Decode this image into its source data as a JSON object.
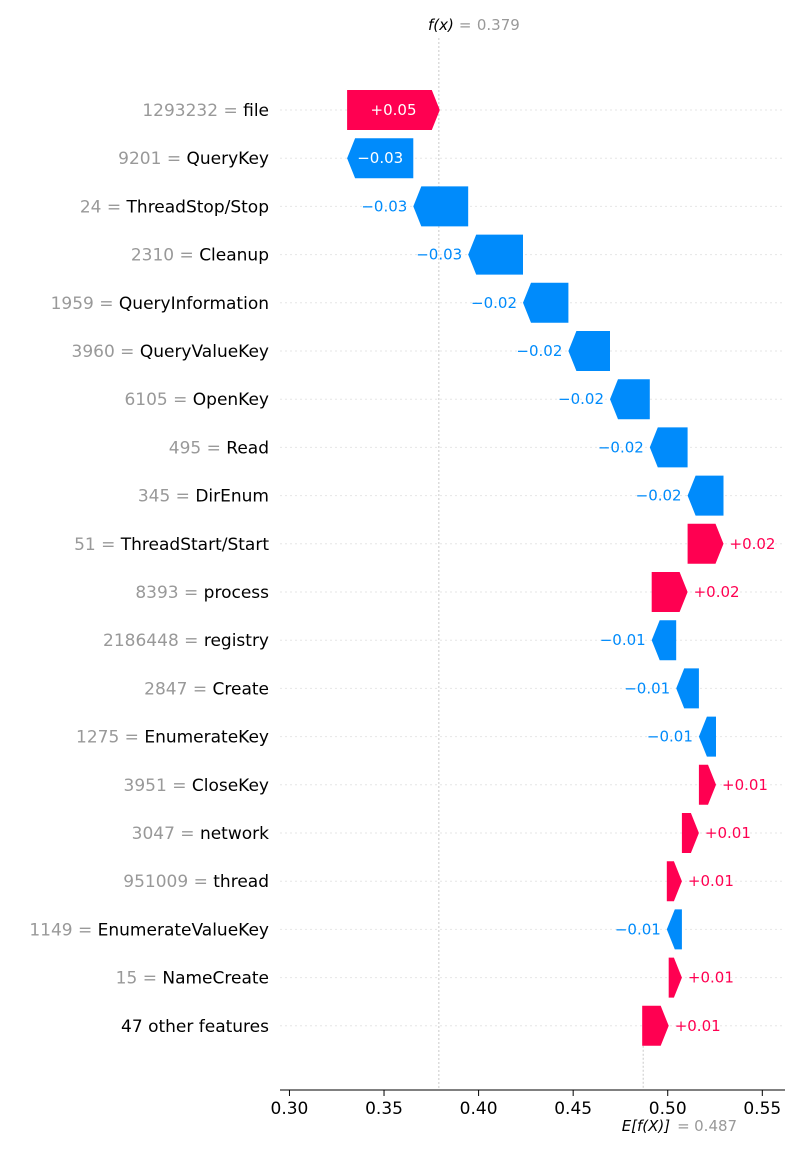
{
  "chart_data": {
    "type": "waterfall",
    "fx": {
      "label": "f(x)",
      "value": "0.379"
    },
    "efx": {
      "label": "E[f(X)]",
      "value": "0.487"
    },
    "base_value": 0.487,
    "final_value": 0.379,
    "xlim": [
      0.295,
      0.562
    ],
    "xticks": [
      "0.30",
      "0.35",
      "0.40",
      "0.45",
      "0.50",
      "0.55"
    ],
    "colors": {
      "positive": "#ff0051",
      "negative": "#008bfb",
      "value_text": "#999999"
    },
    "features": [
      {
        "value": "1293232",
        "name": "file",
        "label": "+0.05",
        "start": 0.3305,
        "end": 0.3795
      },
      {
        "value": "9201",
        "name": "QueryKey",
        "label": "−0.03",
        "start": 0.3655,
        "end": 0.3305
      },
      {
        "value": "24",
        "name": "ThreadStop/Stop",
        "label": "−0.03",
        "start": 0.3945,
        "end": 0.3655
      },
      {
        "value": "2310",
        "name": "Cleanup",
        "label": "−0.03",
        "start": 0.4235,
        "end": 0.3945
      },
      {
        "value": "1959",
        "name": "QueryInformation",
        "label": "−0.02",
        "start": 0.4475,
        "end": 0.4235
      },
      {
        "value": "3960",
        "name": "QueryValueKey",
        "label": "−0.02",
        "start": 0.4695,
        "end": 0.4475
      },
      {
        "value": "6105",
        "name": "OpenKey",
        "label": "−0.02",
        "start": 0.4905,
        "end": 0.4695
      },
      {
        "value": "495",
        "name": "Read",
        "label": "−0.02",
        "start": 0.5105,
        "end": 0.4905
      },
      {
        "value": "345",
        "name": "DirEnum",
        "label": "−0.02",
        "start": 0.5295,
        "end": 0.5105
      },
      {
        "value": "51",
        "name": "ThreadStart/Start",
        "label": "+0.02",
        "start": 0.5105,
        "end": 0.5295
      },
      {
        "value": "8393",
        "name": "process",
        "label": "+0.02",
        "start": 0.4915,
        "end": 0.5105
      },
      {
        "value": "2186448",
        "name": "registry",
        "label": "−0.01",
        "start": 0.5045,
        "end": 0.4915
      },
      {
        "value": "2847",
        "name": "Create",
        "label": "−0.01",
        "start": 0.5165,
        "end": 0.5045
      },
      {
        "value": "1275",
        "name": "EnumerateKey",
        "label": "−0.01",
        "start": 0.5255,
        "end": 0.5165
      },
      {
        "value": "3951",
        "name": "CloseKey",
        "label": "+0.01",
        "start": 0.5165,
        "end": 0.5255
      },
      {
        "value": "3047",
        "name": "network",
        "label": "+0.01",
        "start": 0.5075,
        "end": 0.5165
      },
      {
        "value": "951009",
        "name": "thread",
        "label": "+0.01",
        "start": 0.4995,
        "end": 0.5075
      },
      {
        "value": "1149",
        "name": "EnumerateValueKey",
        "label": "−0.01",
        "start": 0.5075,
        "end": 0.4995
      },
      {
        "value": "15",
        "name": "NameCreate",
        "label": "+0.01",
        "start": 0.5005,
        "end": 0.5075
      },
      {
        "value": "",
        "name": "47 other features",
        "label": "+0.01",
        "start": 0.4865,
        "end": 0.5005
      }
    ]
  }
}
